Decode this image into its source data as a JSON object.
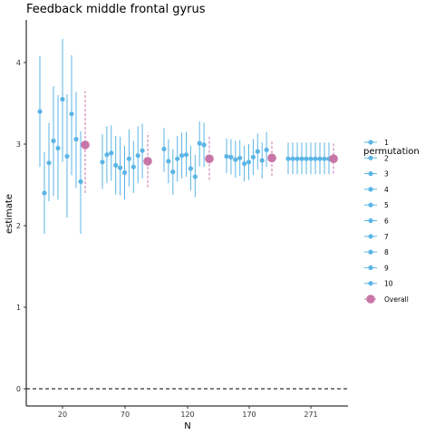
{
  "chart_data": {
    "type": "scatter",
    "title": "Feedback middle frontal gyrus",
    "xlabel": "N",
    "ylabel": "estimate",
    "ylim": [
      -0.2,
      4.5
    ],
    "y_ticks": [
      0,
      1,
      2,
      3,
      4
    ],
    "x_ticks": [
      "20",
      "70",
      "120",
      "170",
      "271"
    ],
    "reference_line": 0,
    "grid": false,
    "legend": {
      "title": "permutation",
      "position": "right",
      "labels": [
        "1",
        "2",
        "3",
        "4",
        "5",
        "6",
        "7",
        "8",
        "9",
        "10",
        "Overall"
      ]
    },
    "colors": {
      "permutation": "#5BB5E5",
      "overall": "#C875A8"
    },
    "groups": [
      {
        "n": "20",
        "estimates": [
          3.4,
          2.4,
          2.77,
          3.04,
          2.95,
          3.55,
          2.85,
          3.37,
          3.06,
          2.54
        ],
        "lower": [
          2.72,
          1.9,
          2.3,
          2.36,
          2.32,
          2.78,
          2.1,
          2.62,
          2.46,
          1.9
        ],
        "upper": [
          4.08,
          2.9,
          3.26,
          3.71,
          3.6,
          4.29,
          3.61,
          4.09,
          3.64,
          3.16
        ],
        "overall": {
          "estimate": 2.99,
          "lower": 2.4,
          "upper": 3.65
        }
      },
      {
        "n": "70",
        "estimates": [
          2.78,
          2.87,
          2.89,
          2.74,
          2.71,
          2.65,
          2.82,
          2.72,
          2.86,
          2.92
        ],
        "lower": [
          2.45,
          2.52,
          2.55,
          2.38,
          2.37,
          2.32,
          2.48,
          2.4,
          2.52,
          2.58
        ],
        "upper": [
          3.12,
          3.22,
          3.23,
          3.1,
          3.09,
          2.98,
          3.18,
          3.04,
          3.22,
          3.25
        ],
        "overall": {
          "estimate": 2.79,
          "lower": 2.47,
          "upper": 3.14
        }
      },
      {
        "n": "120",
        "estimates": [
          2.94,
          2.79,
          2.66,
          2.82,
          2.86,
          2.87,
          2.7,
          2.6,
          3.01,
          2.99
        ],
        "lower": [
          2.66,
          2.52,
          2.38,
          2.54,
          2.58,
          2.6,
          2.43,
          2.35,
          2.73,
          2.72
        ],
        "upper": [
          3.2,
          3.06,
          2.94,
          3.1,
          3.14,
          3.15,
          2.98,
          2.87,
          3.28,
          3.26
        ],
        "overall": {
          "estimate": 2.82,
          "lower": 2.56,
          "upper": 3.09
        }
      },
      {
        "n": "170",
        "estimates": [
          2.85,
          2.84,
          2.81,
          2.83,
          2.76,
          2.78,
          2.84,
          2.91,
          2.8,
          2.93
        ],
        "lower": [
          2.64,
          2.63,
          2.59,
          2.61,
          2.54,
          2.56,
          2.62,
          2.69,
          2.58,
          2.72
        ],
        "upper": [
          3.07,
          3.06,
          3.04,
          3.05,
          2.98,
          3.0,
          3.06,
          3.13,
          3.02,
          3.15
        ],
        "overall": {
          "estimate": 2.83,
          "lower": 2.61,
          "upper": 3.05
        }
      },
      {
        "n": "271",
        "estimates": [
          2.82,
          2.82,
          2.82,
          2.82,
          2.82,
          2.82,
          2.82,
          2.82,
          2.82,
          2.82
        ],
        "lower": [
          2.63,
          2.63,
          2.63,
          2.63,
          2.63,
          2.63,
          2.63,
          2.63,
          2.63,
          2.63
        ],
        "upper": [
          3.02,
          3.02,
          3.02,
          3.02,
          3.02,
          3.02,
          3.02,
          3.02,
          3.02,
          3.02
        ],
        "overall": {
          "estimate": 2.82,
          "lower": 2.64,
          "upper": 3.01
        }
      }
    ]
  }
}
